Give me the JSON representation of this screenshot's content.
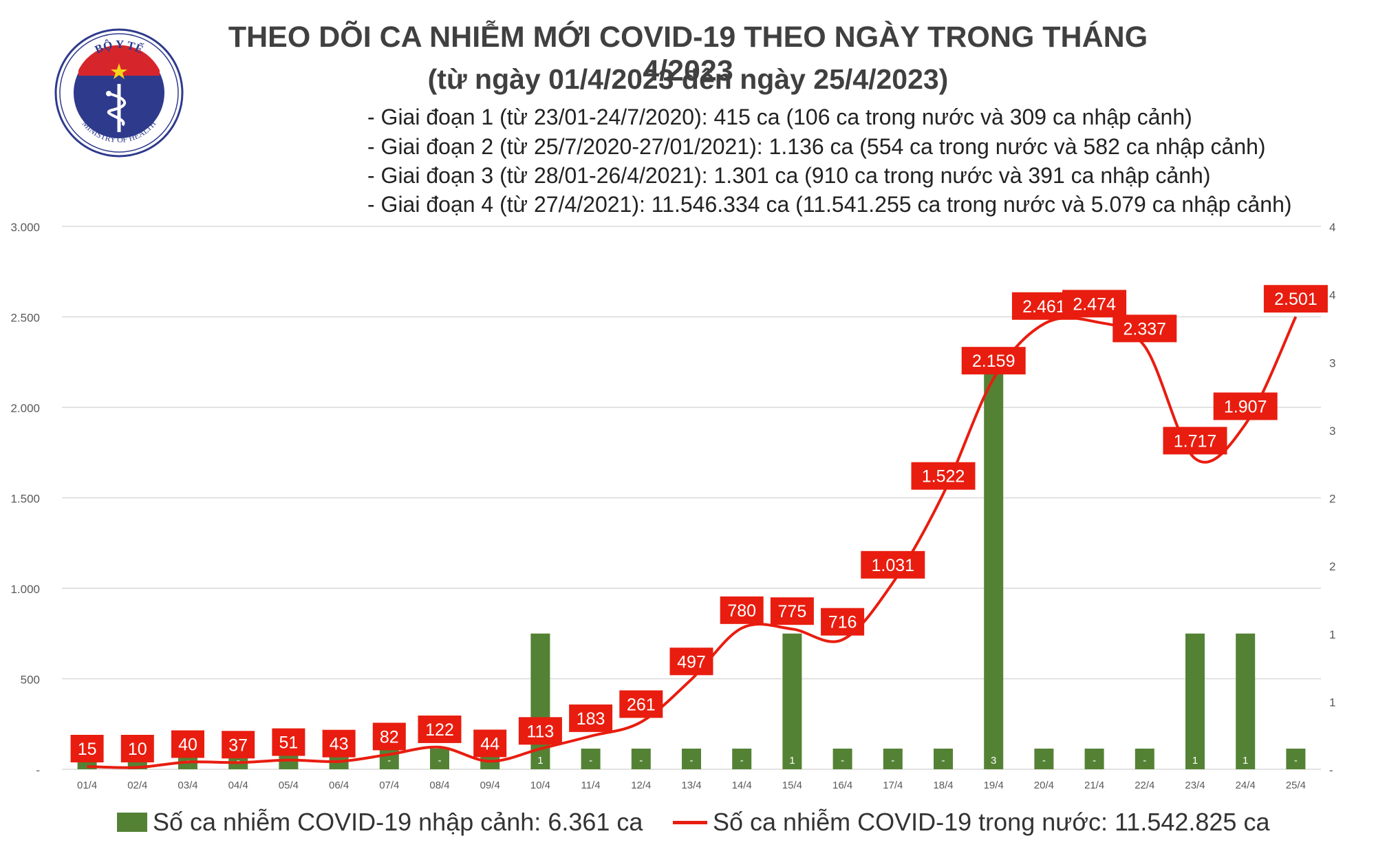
{
  "logo": {
    "top_text": "BỘ Y TẾ",
    "bottom_text": "MINISTRY OF HEALTH",
    "colors": {
      "ring": "#2e3a8c",
      "red": "#d7262b",
      "star": "#f6d21a"
    }
  },
  "header": {
    "title": "THEO DÕI CA NHIỄM MỚI COVID-19 THEO NGÀY TRONG THÁNG 4/2023",
    "subtitle": "(từ ngày 01/4/2023 đến ngày 25/4/2023)",
    "phases": [
      "- Giai đoạn 1 (từ 23/01-24/7/2020): 415 ca (106 ca trong nước và 309 ca nhập cảnh)",
      "- Giai đoạn 2 (từ 25/7/2020-27/01/2021): 1.136 ca (554 ca trong nước và 582 ca nhập cảnh)",
      "- Giai đoạn 3 (từ 28/01-26/4/2021): 1.301 ca (910 ca trong nước và 391 ca nhập cảnh)",
      "- Giai đoạn 4 (từ 27/4/2021): 11.546.334 ca (11.541.255 ca trong nước và 5.079 ca nhập cảnh)"
    ]
  },
  "legend": {
    "bar_label": "Số ca nhiễm COVID-19 nhập cảnh: 6.361 ca",
    "line_label": "Số ca nhiễm COVID-19 trong nước: 11.542.825 ca"
  },
  "chart_data": {
    "type": "bar+line",
    "categories": [
      "01/4",
      "02/4",
      "03/4",
      "04/4",
      "05/4",
      "06/4",
      "07/4",
      "08/4",
      "09/4",
      "10/4",
      "11/4",
      "12/4",
      "13/4",
      "14/4",
      "15/4",
      "16/4",
      "17/4",
      "18/4",
      "19/4",
      "20/4",
      "21/4",
      "22/4",
      "23/4",
      "24/4",
      "25/4"
    ],
    "series": [
      {
        "name": "Số ca nhiễm COVID-19 trong nước",
        "type": "line",
        "axis": "left",
        "color": "#e81d0f",
        "values": [
          15,
          10,
          40,
          37,
          51,
          43,
          82,
          122,
          44,
          113,
          183,
          261,
          497,
          780,
          775,
          716,
          1031,
          1522,
          2159,
          2461,
          2474,
          2337,
          1717,
          1907,
          2501
        ],
        "labels": [
          "15",
          "10",
          "40",
          "37",
          "51",
          "43",
          "82",
          "122",
          "44",
          "113",
          "183",
          "261",
          "497",
          "780",
          "775",
          "716",
          "1.031",
          "1.522",
          "2.159",
          "2.461",
          "2.474",
          "2.337",
          "1.717",
          "1.907",
          "2.501"
        ]
      },
      {
        "name": "Số ca nhiễm COVID-19 nhập cảnh",
        "type": "bar",
        "axis": "right",
        "color": "#548235",
        "values": [
          0,
          0,
          0,
          0,
          0,
          0,
          0,
          0,
          0,
          1,
          0,
          0,
          0,
          0,
          1,
          0,
          0,
          0,
          3,
          0,
          0,
          0,
          1,
          1,
          0
        ],
        "labels": [
          "-",
          "-",
          "-",
          "-",
          "-",
          "-",
          "-",
          "-",
          "-",
          "1",
          "-",
          "-",
          "-",
          "-",
          "1",
          "-",
          "-",
          "-",
          "3",
          "-",
          "-",
          "-",
          "1",
          "1",
          "-"
        ]
      }
    ],
    "y_left": {
      "ylim": [
        0,
        3000
      ],
      "ticks": [
        "-",
        "500",
        "1.000",
        "1.500",
        "2.000",
        "2.500",
        "3.000"
      ]
    },
    "y_right": {
      "ticks": [
        "-",
        "1",
        "1",
        "2",
        "2",
        "3",
        "3",
        "4",
        "4"
      ]
    },
    "grid": true,
    "legend_position": "bottom"
  }
}
